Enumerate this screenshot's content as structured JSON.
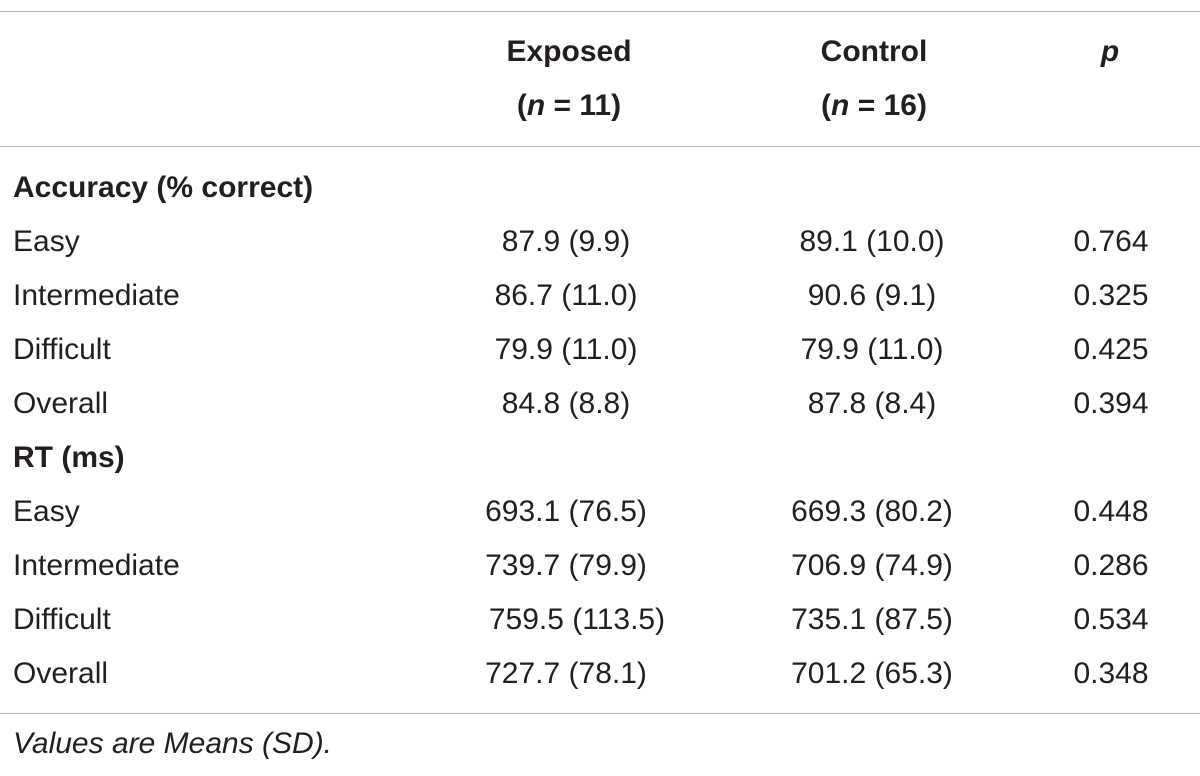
{
  "table": {
    "header": {
      "exposed_label": "Exposed",
      "exposed_n_prefix": "(",
      "exposed_n_var": "n",
      "exposed_n_rest": " = 11)",
      "control_label": "Control",
      "control_n_prefix": "(",
      "control_n_var": "n",
      "control_n_rest": " = 16)",
      "p_label": "p"
    },
    "sections": [
      {
        "title": "Accuracy  (% correct)",
        "rows": [
          {
            "label": "Easy",
            "exposed": "87.9 (9.9)",
            "control": "89.1 (10.0)",
            "p": "0.764"
          },
          {
            "label": "Intermediate",
            "exposed": "86.7 (11.0)",
            "control": "90.6 (9.1)",
            "p": "0.325"
          },
          {
            "label": "Difficult",
            "exposed": "79.9 (11.0)",
            "control": "79.9 (11.0)",
            "p": "0.425"
          },
          {
            "label": "Overall",
            "exposed": "84.8 (8.8)",
            "control": "87.8 (8.4)",
            "p": "0.394"
          }
        ]
      },
      {
        "title": "RT (ms)",
        "rows": [
          {
            "label": "Easy",
            "exposed": "693.1 (76.5)",
            "control": "669.3 (80.2)",
            "p": "0.448"
          },
          {
            "label": "Intermediate",
            "exposed": "739.7 (79.9)",
            "control": "706.9 (74.9)",
            "p": "0.286"
          },
          {
            "label": "Difficult",
            "exposed": "759.5 (113.5)",
            "control": "735.1 (87.5)",
            "p": "0.534"
          },
          {
            "label": "Overall",
            "exposed": "727.7 (78.1)",
            "control": "701.2 (65.3)",
            "p": "0.348"
          }
        ]
      }
    ],
    "footnote": "Values are Means (SD)."
  }
}
